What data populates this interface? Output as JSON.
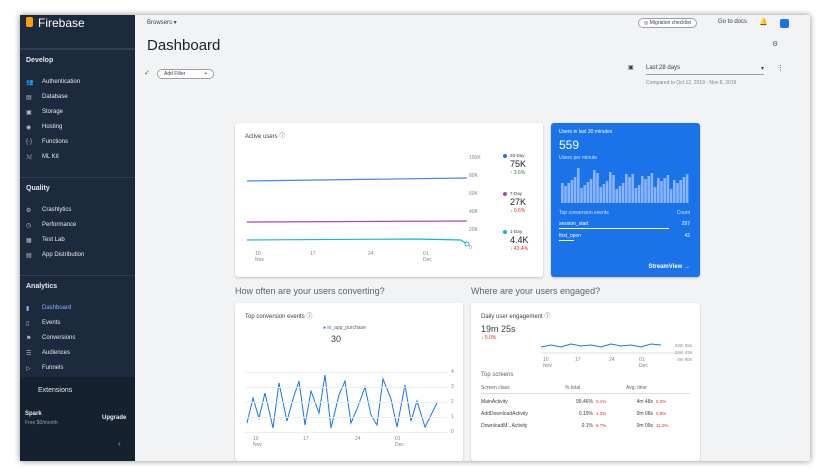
{
  "sidebar": {
    "brand": "Firebase",
    "sections": [
      {
        "title": "Develop",
        "items": [
          "Authentication",
          "Database",
          "Storage",
          "Hosting",
          "Functions",
          "ML Kit"
        ]
      },
      {
        "title": "Quality",
        "items": [
          "Crashlytics",
          "Performance",
          "Test Lab",
          "App Distribution"
        ]
      },
      {
        "title": "Analytics",
        "items": [
          "Dashboard",
          "Events",
          "Conversions",
          "Audiences",
          "Funnels"
        ]
      }
    ],
    "extensions": "Extensions",
    "plan": "Spark",
    "plan_sub": "Free $0/month",
    "upgrade": "Upgrade"
  },
  "topbar": {
    "project": "Browsers",
    "migration": "Migration checklist",
    "docs": "Go to docs"
  },
  "header": {
    "title": "Dashboard",
    "filter": "Add Filter",
    "date": "Last 28 days",
    "compared": "Compared to Oct 12, 2019 - Nov 8, 2019"
  },
  "active_users": {
    "title": "Active users",
    "yticks": [
      "100K",
      "80K",
      "60K",
      "40K",
      "20K",
      "0"
    ],
    "xticks": [
      {
        "day": "10",
        "month": "Nov"
      },
      {
        "day": "17"
      },
      {
        "day": "24"
      },
      {
        "day": "01",
        "month": "Dec"
      }
    ],
    "legend": [
      {
        "name": "28-Day",
        "value": "75K",
        "change": "3.6%"
      },
      {
        "name": "7-Day",
        "value": "27K",
        "change": "0.6%"
      },
      {
        "name": "1-Day",
        "value": "4.4K",
        "change": "43.4%"
      }
    ]
  },
  "realtime": {
    "title": "Users in last 30 minutes",
    "value": "559",
    "sub": "Users per minute",
    "col1": "Top conversion events",
    "col2": "Count",
    "rows": [
      [
        "session_start",
        "297"
      ],
      [
        "first_open",
        "42"
      ]
    ],
    "link": "StreamView"
  },
  "headings": [
    "How often are your users converting?",
    "Where are your users engaged?"
  ],
  "conversions": {
    "title": "Top conversion events",
    "legend": "in_app_purchase",
    "value": "30",
    "yticks": [
      "4",
      "3",
      "2",
      "1",
      "0"
    ],
    "xticks": [
      {
        "day": "10",
        "month": "Nov"
      },
      {
        "day": "17"
      },
      {
        "day": "24"
      },
      {
        "day": "01",
        "month": "Dec"
      }
    ]
  },
  "engagement": {
    "title": "Daily user engagement",
    "value": "19m 25s",
    "change": "5.0%",
    "yticks": [
      "23m 25s",
      "19m 43s",
      "0m 00s"
    ],
    "xticks": [
      {
        "day": "10",
        "month": "Nov"
      },
      {
        "day": "17"
      },
      {
        "day": "24"
      },
      {
        "day": "01",
        "month": "Dec"
      }
    ],
    "section": "Top screens",
    "headers": [
      "Screen class",
      "% total",
      "Avg. time"
    ],
    "rows": [
      [
        "MainActivity",
        "99.46%",
        "0.1%",
        "4m 48s",
        "0.0%"
      ],
      [
        "AddDownloadActivity",
        "0.19%",
        "1.3%",
        "0m 08s",
        "0.9%"
      ],
      [
        "DownloadM...Activity",
        "0.1%",
        "8.7%",
        "0m 09s",
        "11.0%"
      ]
    ]
  }
}
